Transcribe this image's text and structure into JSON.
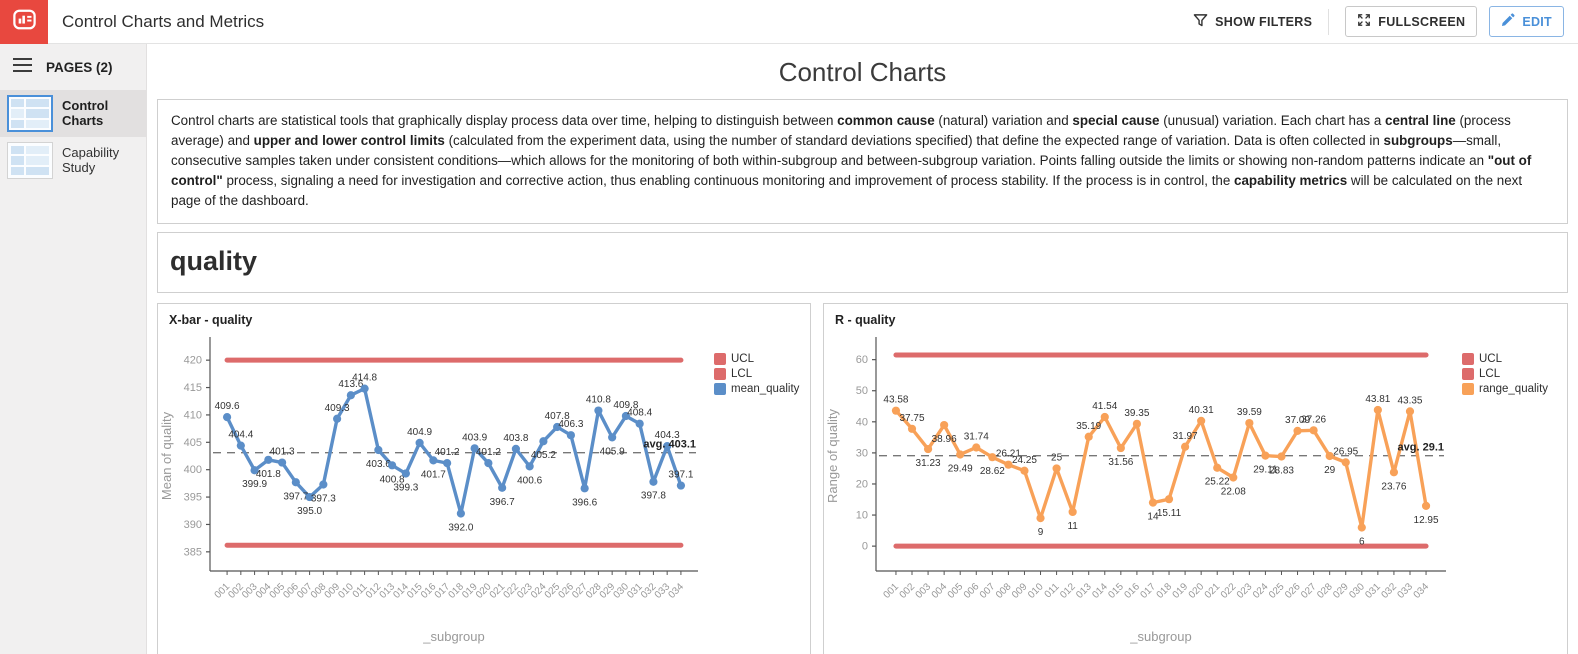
{
  "app": {
    "title": "Control Charts and Metrics",
    "show_filters_label": "SHOW FILTERS",
    "fullscreen_label": "FULLSCREEN",
    "edit_label": "EDIT"
  },
  "colors": {
    "accent_red": "#e8483f",
    "edit_blue": "#4a90d9",
    "limit_red": "#dd6b6b",
    "mean_blue": "#5b8ec8",
    "range_orange": "#f8a158"
  },
  "sidebar": {
    "header": "PAGES (2)",
    "items": [
      {
        "label": "Control Charts",
        "selected": true
      },
      {
        "label": "Capability Study",
        "selected": false
      }
    ]
  },
  "page": {
    "title": "Control Charts",
    "section_title": "quality",
    "description_segments": [
      {
        "t": "Control charts are statistical tools that graphically display process data over time, helping to distinguish between ",
        "b": false
      },
      {
        "t": "common cause",
        "b": true
      },
      {
        "t": " (natural) variation and ",
        "b": false
      },
      {
        "t": "special cause",
        "b": true
      },
      {
        "t": " (unusual) variation. Each chart has a ",
        "b": false
      },
      {
        "t": "central line",
        "b": true
      },
      {
        "t": " (process average) and ",
        "b": false
      },
      {
        "t": "upper and lower control limits",
        "b": true
      },
      {
        "t": " (calculated from the experiment data, using the number of standard deviations specified) that define the expected range of variation. Data is often collected in ",
        "b": false
      },
      {
        "t": "subgroups",
        "b": true
      },
      {
        "t": "—small, consecutive samples taken under consistent conditions—which allows for the monitoring of both within-subgroup and between-subgroup variation. Points falling outside the limits or showing non-random patterns indicate an ",
        "b": false
      },
      {
        "t": "\"out of control\"",
        "b": true
      },
      {
        "t": " process, signaling a need for investigation and corrective action, thus enabling continuous monitoring and improvement of process stability. If the process is in control, the ",
        "b": false
      },
      {
        "t": "capability metrics",
        "b": true
      },
      {
        "t": " will be calculated on the next page of the dashboard.",
        "b": false
      }
    ]
  },
  "chart_data": [
    {
      "type": "line",
      "title": "X-bar - quality",
      "series_name": "mean_quality",
      "categories": [
        "001",
        "002",
        "003",
        "004",
        "005",
        "006",
        "007",
        "008",
        "009",
        "010",
        "011",
        "012",
        "013",
        "014",
        "015",
        "016",
        "017",
        "018",
        "019",
        "020",
        "021",
        "022",
        "023",
        "024",
        "025",
        "026",
        "027",
        "028",
        "029",
        "030",
        "031",
        "032",
        "033",
        "034"
      ],
      "values": [
        409.6,
        404.4,
        399.9,
        401.8,
        401.3,
        397.7,
        395.0,
        397.3,
        409.3,
        413.6,
        414.8,
        403.6,
        400.8,
        399.3,
        404.9,
        401.7,
        401.2,
        392.0,
        403.9,
        401.2,
        396.7,
        403.8,
        400.6,
        405.2,
        407.8,
        406.3,
        396.6,
        410.8,
        405.9,
        409.8,
        408.4,
        397.8,
        404.3,
        397.1
      ],
      "labels": [
        "409.6",
        "404.4",
        "399.9",
        "401.8",
        "401.3",
        "397.7",
        "395.0",
        "397.3",
        "409.3",
        "413.6",
        "414.8",
        "403.6",
        "400.8",
        "399.3",
        "404.9",
        "401.7",
        "401.2",
        "392.0",
        "403.9",
        "401.2",
        "396.7",
        "403.8",
        "400.6",
        "405.2",
        "407.8",
        "406.3",
        "396.6",
        "410.8",
        "405.9",
        "409.8",
        "408.4",
        "397.8",
        "404.3",
        "397.1"
      ],
      "label_side": [
        "a",
        "a",
        "b",
        "b",
        "a",
        "b",
        "b",
        "b",
        "a",
        "a",
        "a",
        "b",
        "b",
        "b",
        "a",
        "b",
        "a",
        "b",
        "a",
        "a",
        "b",
        "a",
        "b",
        "b",
        "a",
        "a",
        "b",
        "a",
        "b",
        "a",
        "a",
        "b",
        "a",
        "a"
      ],
      "ucl": 420.0,
      "lcl": 386.2,
      "avg": 403.1,
      "avg_label": "avg. 403.1",
      "xlabel": "_subgroup",
      "ylabel": "Mean of quality",
      "yticks": [
        385,
        390,
        395,
        400,
        405,
        410,
        415,
        420
      ],
      "ylim": [
        381.5,
        423.5
      ],
      "line_color": "#5b8ec8",
      "limit_color": "#dd6b6b",
      "legend": [
        {
          "label": "UCL",
          "color": "#dd6b6b"
        },
        {
          "label": "LCL",
          "color": "#dd6b6b"
        },
        {
          "label": "mean_quality",
          "color": "#5b8ec8"
        }
      ]
    },
    {
      "type": "line",
      "title": "R - quality",
      "series_name": "range_quality",
      "categories": [
        "001",
        "002",
        "003",
        "004",
        "005",
        "006",
        "007",
        "008",
        "009",
        "010",
        "011",
        "012",
        "013",
        "014",
        "015",
        "016",
        "017",
        "018",
        "019",
        "020",
        "021",
        "022",
        "023",
        "024",
        "025",
        "026",
        "027",
        "028",
        "029",
        "030",
        "031",
        "032",
        "033",
        "034"
      ],
      "values": [
        43.58,
        37.75,
        31.23,
        38.96,
        29.49,
        31.74,
        28.62,
        26.21,
        24.25,
        9,
        25,
        11,
        35.19,
        41.54,
        31.56,
        39.35,
        14,
        15.11,
        31.97,
        40.31,
        25.22,
        22.08,
        39.59,
        29.11,
        28.83,
        37.09,
        37.26,
        29,
        26.95,
        6,
        43.81,
        23.76,
        43.35,
        12.95
      ],
      "labels": [
        "43.58",
        "37.75",
        "31.23",
        "38.96",
        "29.49",
        "31.74",
        "28.62",
        "26.21",
        "24.25",
        "9",
        "25",
        "11",
        "35.19",
        "41.54",
        "31.56",
        "39.35",
        "14",
        "15.11",
        "31.97",
        "40.31",
        "25.22",
        "22.08",
        "39.59",
        "29.11",
        "28.83",
        "37.09",
        "37.26",
        "29",
        "26.95",
        "6",
        "43.81",
        "23.76",
        "43.35",
        "12.95"
      ],
      "label_side": [
        "a",
        "a",
        "b",
        "b",
        "b",
        "a",
        "b",
        "a",
        "a",
        "b",
        "a",
        "b",
        "a",
        "a",
        "b",
        "a",
        "b",
        "b",
        "a",
        "a",
        "b",
        "b",
        "a",
        "b",
        "b",
        "a",
        "a",
        "b",
        "a",
        "b",
        "a",
        "b",
        "a",
        "b"
      ],
      "ucl": 61.5,
      "lcl": 0,
      "avg": 29.1,
      "avg_label": "avg. 29.1",
      "xlabel": "_subgroup",
      "ylabel": "Range of quality",
      "yticks": [
        0,
        10,
        20,
        30,
        40,
        50,
        60
      ],
      "ylim": [
        -8,
        66
      ],
      "line_color": "#f8a158",
      "limit_color": "#dd6b6b",
      "legend": [
        {
          "label": "UCL",
          "color": "#dd6b6b"
        },
        {
          "label": "LCL",
          "color": "#dd6b6b"
        },
        {
          "label": "range_quality",
          "color": "#f8a158"
        }
      ]
    }
  ]
}
